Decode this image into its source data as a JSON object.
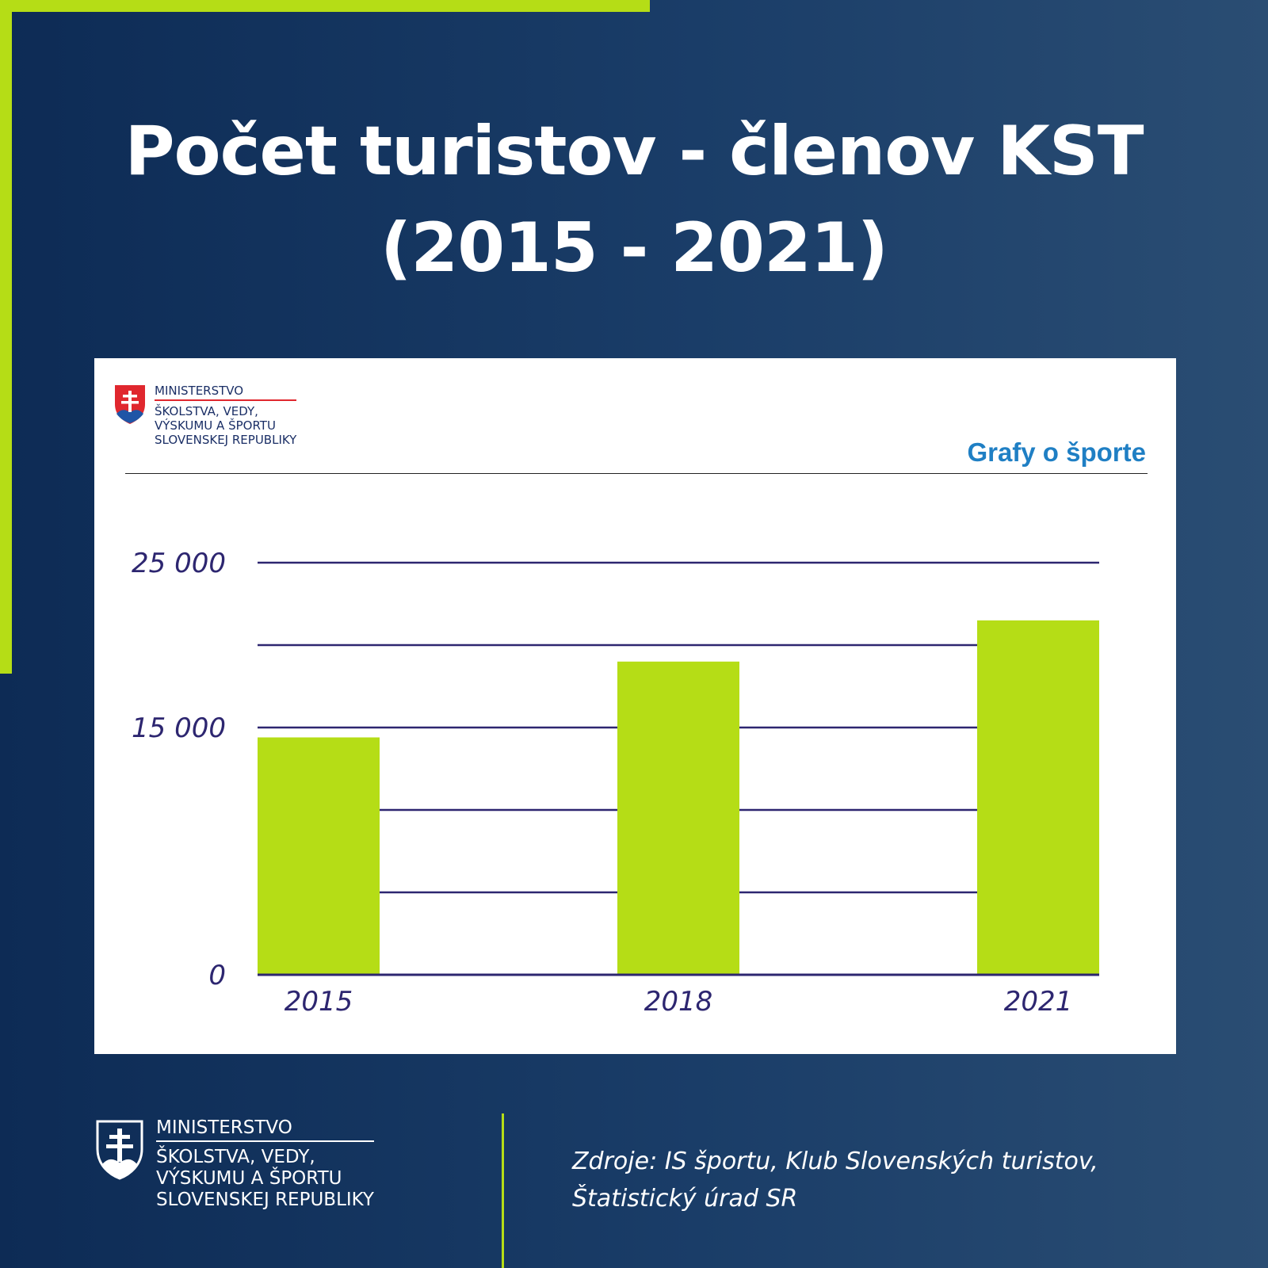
{
  "title": {
    "line1": "Počet turistov - členov KST",
    "line2": "(2015 - 2021)"
  },
  "card": {
    "ministry": {
      "line1": "MINISTERSTVO",
      "line2": "ŠKOLSTVA, VEDY,",
      "line3": "VÝSKUMU A ŠPORTU",
      "line4": "SLOVENSKEJ REPUBLIKY"
    },
    "brand": "Grafy o športe"
  },
  "colors": {
    "accent": "#b5dd16",
    "bar": "#b5dd16",
    "grid": "#2d2670",
    "brand": "#1f7fc4",
    "background": "#0d2b55"
  },
  "chart_data": {
    "type": "bar",
    "categories": [
      "2015",
      "2018",
      "2021"
    ],
    "values": [
      14400,
      19000,
      21500
    ],
    "ylim": [
      0,
      25000
    ],
    "yticks": [
      0,
      5000,
      10000,
      15000,
      20000,
      25000
    ],
    "ytick_labels": [
      "0",
      "",
      "",
      "15 000",
      "",
      "25 000"
    ],
    "grid": true,
    "legend": "none"
  },
  "footer": {
    "ministry": {
      "line1": "MINISTERSTVO",
      "line2": "ŠKOLSTVA, VEDY,",
      "line3": "VÝSKUMU A ŠPORTU",
      "line4": "SLOVENSKEJ REPUBLIKY"
    },
    "source_line1": "Zdroje: IS športu, Klub Slovenských turistov,",
    "source_line2": "Štatistický úrad SR"
  }
}
